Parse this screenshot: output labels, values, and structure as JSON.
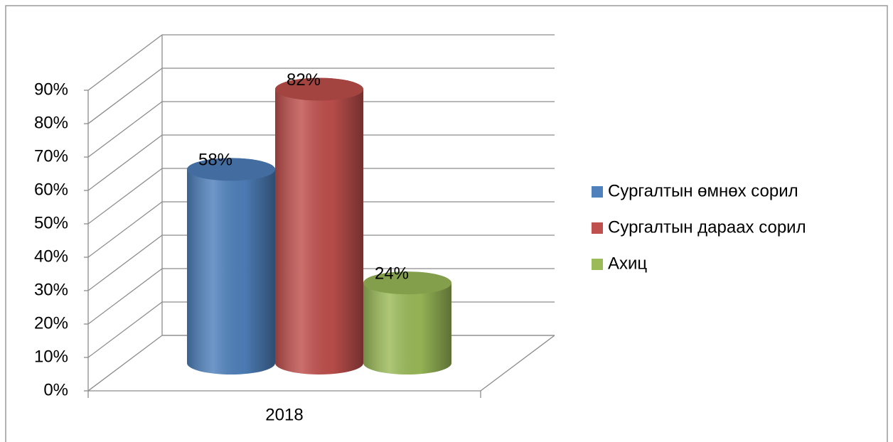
{
  "chart_data": {
    "type": "bar3d",
    "categories": [
      "2018"
    ],
    "series": [
      {
        "name": "Сургалтын өмнөх сорил",
        "color": "#4f81bd",
        "values": [
          58
        ],
        "value_labels": [
          "58%"
        ]
      },
      {
        "name": "Сургалтын дараах сорил",
        "color": "#c0504d",
        "values": [
          82
        ],
        "value_labels": [
          "82%"
        ]
      },
      {
        "name": "Ахиц",
        "color": "#9bbb59",
        "values": [
          24
        ],
        "value_labels": [
          "24%"
        ]
      }
    ],
    "ylim": [
      0,
      90
    ],
    "yticks": [
      {
        "value": 0,
        "label": "0%"
      },
      {
        "value": 10,
        "label": "10%"
      },
      {
        "value": 20,
        "label": "20%"
      },
      {
        "value": 30,
        "label": "30%"
      },
      {
        "value": 40,
        "label": "40%"
      },
      {
        "value": 50,
        "label": "50%"
      },
      {
        "value": 60,
        "label": "60%"
      },
      {
        "value": 70,
        "label": "70%"
      },
      {
        "value": 80,
        "label": "80%"
      },
      {
        "value": 90,
        "label": "90%"
      }
    ],
    "grid": true,
    "legend": "right"
  }
}
